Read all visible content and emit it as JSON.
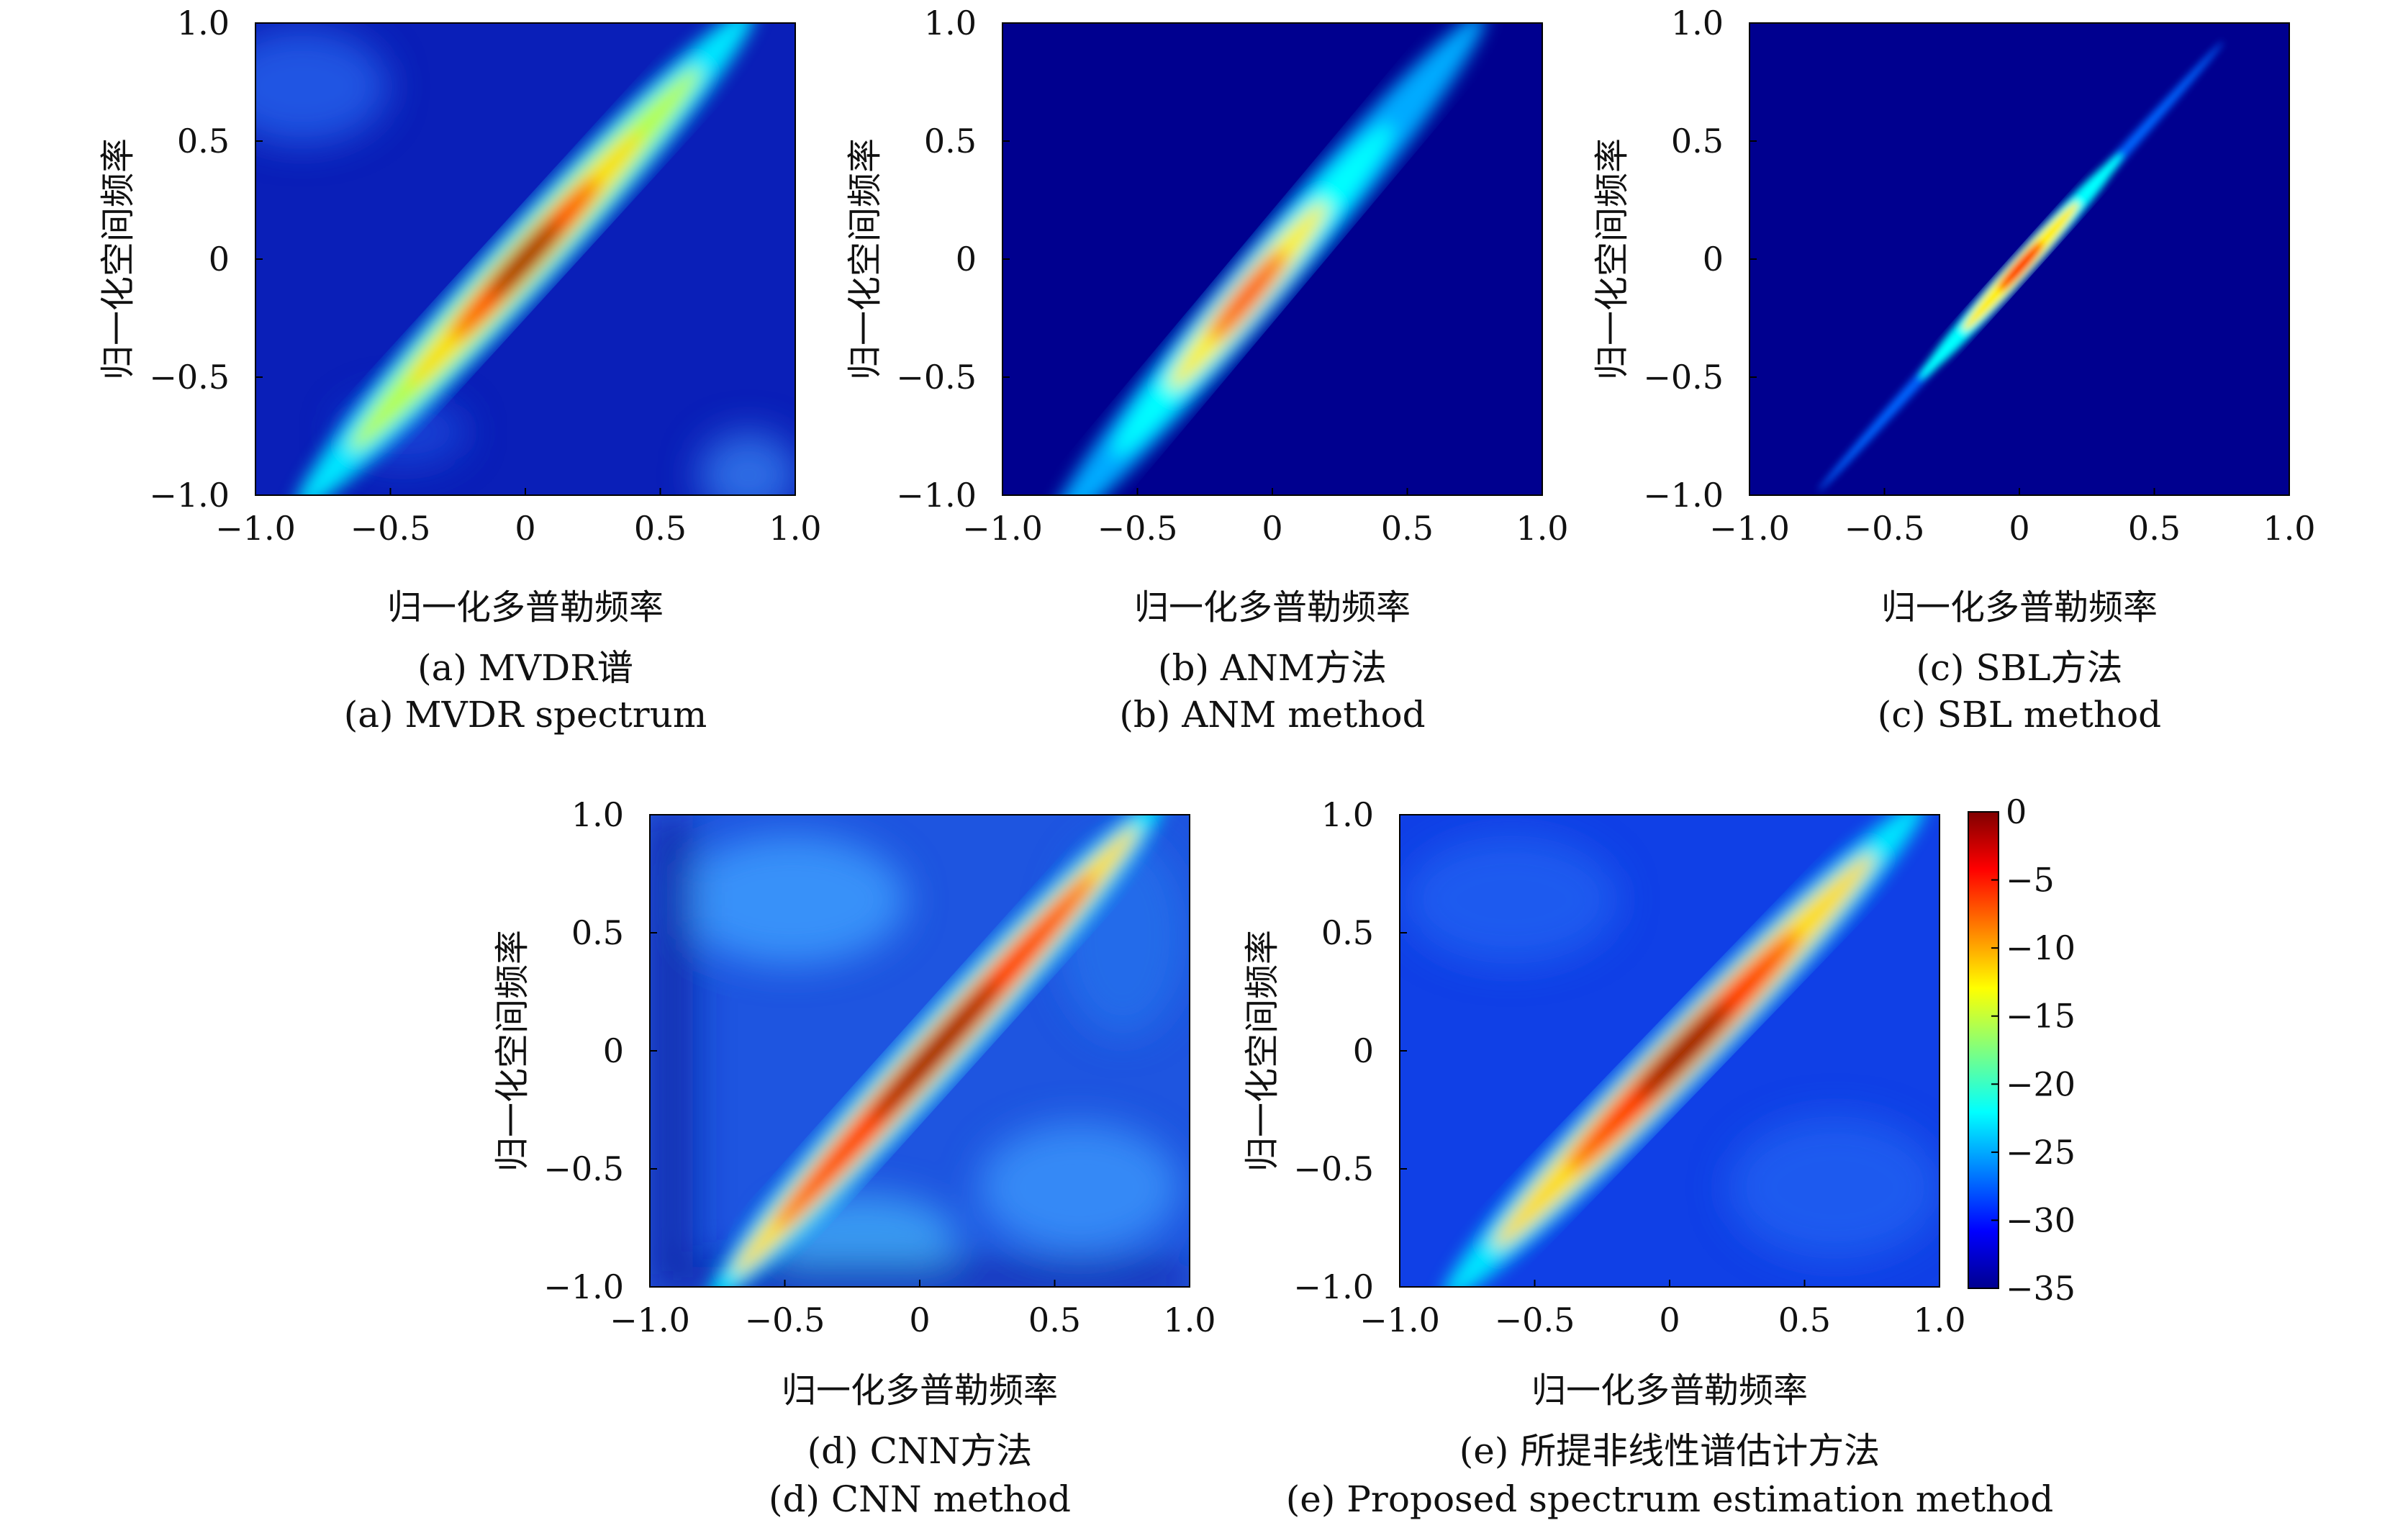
{
  "figure": {
    "colorbar": {
      "ticks": [
        0,
        -5,
        -10,
        -15,
        -20,
        -25,
        -30,
        -35
      ],
      "range": [
        -35,
        0
      ],
      "colormap": "jet"
    },
    "tick_labels": {
      "x": [
        "−1.0",
        "−0.5",
        "0",
        "0.5",
        "1.0"
      ],
      "y": [
        "−1.0",
        "−0.5",
        "0",
        "0.5",
        "1.0"
      ]
    }
  },
  "chart_data": [
    {
      "type": "heatmap",
      "panel": "a",
      "xlabel": "归一化多普勒频率",
      "ylabel": "归一化空间频率",
      "caption_cn": "(a) MVDR谱",
      "caption_en": "(a) MVDR spectrum",
      "xlim": [
        -1.0,
        1.0
      ],
      "ylim": [
        -1.0,
        1.0
      ],
      "zlim": [
        -35,
        0
      ],
      "ridge": {
        "from": [
          -0.75,
          -0.92
        ],
        "to": [
          0.8,
          0.9
        ],
        "peak_at": [
          0.0,
          0.0
        ]
      }
    },
    {
      "type": "heatmap",
      "panel": "b",
      "xlabel": "归一化多普勒频率",
      "ylabel": "归一化空间频率",
      "caption_cn": "(b) ANM方法",
      "caption_en": "(b) ANM method",
      "xlim": [
        -1.0,
        1.0
      ],
      "ylim": [
        -1.0,
        1.0
      ],
      "zlim": [
        -35,
        0
      ],
      "ridge": {
        "from": [
          -0.8,
          -1.0
        ],
        "to": [
          0.75,
          0.9
        ],
        "peak_at": [
          -0.05,
          -0.1
        ]
      }
    },
    {
      "type": "heatmap",
      "panel": "c",
      "xlabel": "归一化多普勒频率",
      "ylabel": "归一化空间频率",
      "caption_cn": "(c) SBL方法",
      "caption_en": "(c) SBL method",
      "xlim": [
        -1.0,
        1.0
      ],
      "ylim": [
        -1.0,
        1.0
      ],
      "zlim": [
        -35,
        0
      ],
      "ridge": {
        "from": [
          -0.7,
          -0.9
        ],
        "to": [
          0.75,
          0.88
        ],
        "peak_at": [
          0.0,
          0.0
        ]
      }
    },
    {
      "type": "heatmap",
      "panel": "d",
      "xlabel": "归一化多普勒频率",
      "ylabel": "归一化空间频率",
      "caption_cn": "(d) CNN方法",
      "caption_en": "(d) CNN method",
      "xlim": [
        -1.0,
        1.0
      ],
      "ylim": [
        -1.0,
        1.0
      ],
      "zlim": [
        -35,
        0
      ],
      "ridge": {
        "from": [
          -0.7,
          -0.9
        ],
        "to": [
          0.8,
          0.92
        ],
        "peak_at": [
          0.05,
          0.05
        ]
      }
    },
    {
      "type": "heatmap",
      "panel": "e",
      "xlabel": "归一化多普勒频率",
      "ylabel": "归一化空间频率",
      "caption_cn": "(e) 所提非线性谱估计方法",
      "caption_en": "(e) Proposed spectrum estimation method",
      "xlim": [
        -1.0,
        1.0
      ],
      "ylim": [
        -1.0,
        1.0
      ],
      "zlim": [
        -35,
        0
      ],
      "ridge": {
        "from": [
          -0.75,
          -0.95
        ],
        "to": [
          0.85,
          0.95
        ],
        "peak_at": [
          0.05,
          0.05
        ]
      }
    }
  ]
}
